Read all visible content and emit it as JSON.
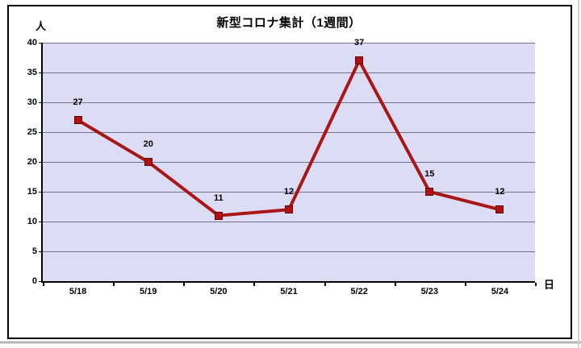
{
  "chart_data": {
    "type": "line",
    "title": "新型コロナ集計（1週間）",
    "ylabel": "人",
    "xlabel": "日",
    "categories": [
      "5/18",
      "5/19",
      "5/20",
      "5/21",
      "5/22",
      "5/23",
      "5/24"
    ],
    "values": [
      27,
      20,
      11,
      12,
      37,
      15,
      12
    ],
    "ylim": [
      0,
      40
    ],
    "ytick_step": 5,
    "grid": true,
    "legend": "none",
    "colors": {
      "line": "#a81616",
      "marker_fill": "#b31212",
      "marker_border": "#5f0606",
      "plot_bg": "#dcdcf5",
      "gridline": "#70708a",
      "axis": "#000000",
      "chart_border": "#000000",
      "text": "#000000"
    }
  }
}
